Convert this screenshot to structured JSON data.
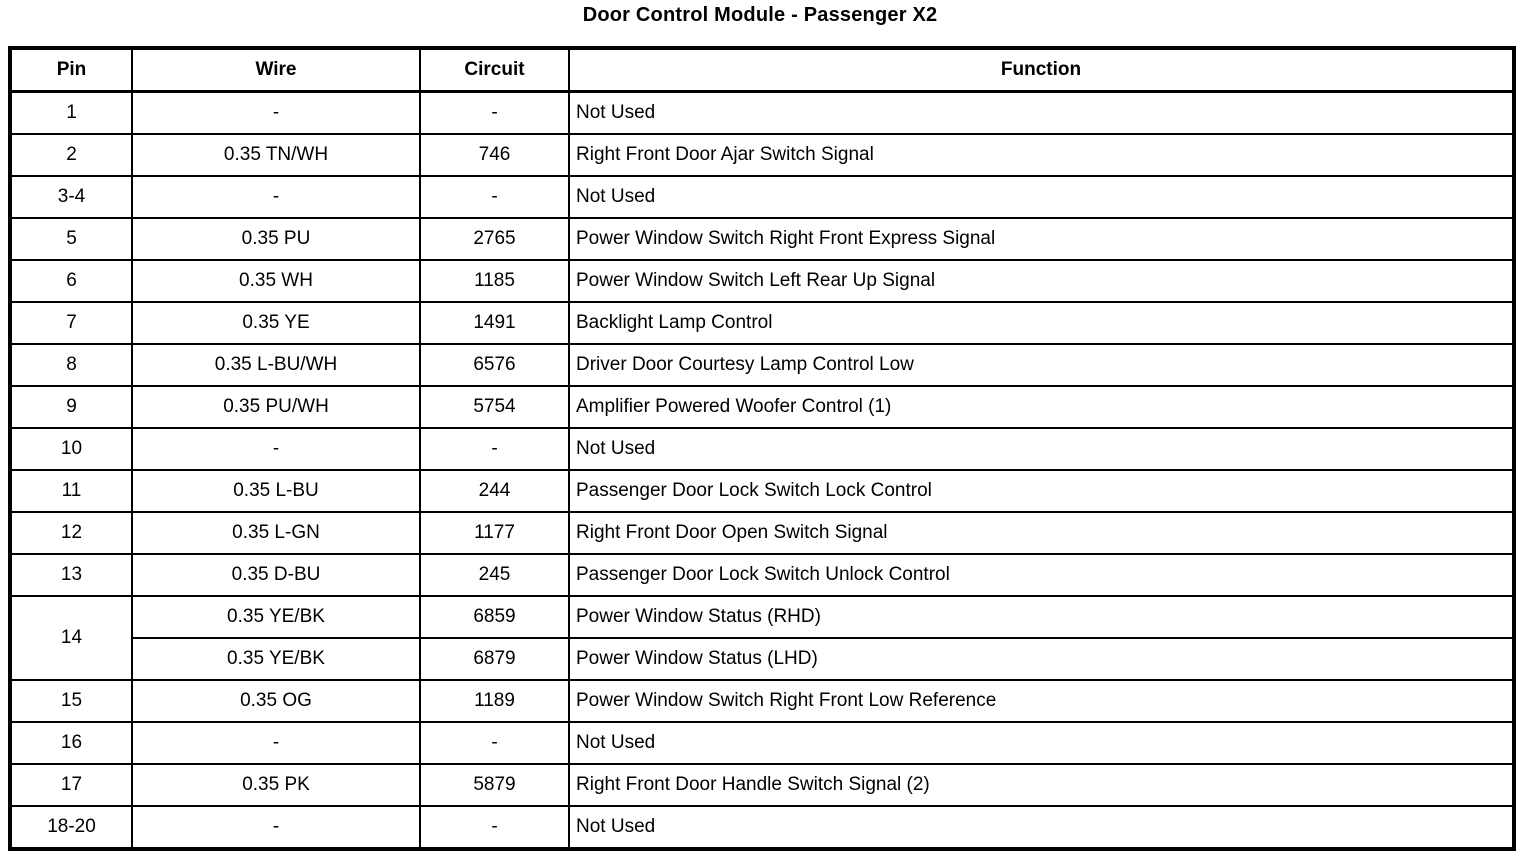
{
  "title": "Door Control Module - Passenger X2",
  "colors": {
    "text": "#000000",
    "background": "#ffffff",
    "border": "#000000"
  },
  "table": {
    "headers": [
      "Pin",
      "Wire",
      "Circuit",
      "Function"
    ],
    "rows": [
      {
        "pin": "1",
        "wire": "-",
        "circuit": "-",
        "function": "Not Used"
      },
      {
        "pin": "2",
        "wire": "0.35 TN/WH",
        "circuit": "746",
        "function": "Right Front Door Ajar Switch Signal"
      },
      {
        "pin": "3-4",
        "wire": "-",
        "circuit": "-",
        "function": "Not Used"
      },
      {
        "pin": "5",
        "wire": "0.35 PU",
        "circuit": "2765",
        "function": "Power Window Switch Right Front Express Signal"
      },
      {
        "pin": "6",
        "wire": "0.35 WH",
        "circuit": "1185",
        "function": "Power Window Switch Left Rear Up Signal"
      },
      {
        "pin": "7",
        "wire": "0.35 YE",
        "circuit": "1491",
        "function": "Backlight Lamp Control"
      },
      {
        "pin": "8",
        "wire": "0.35 L-BU/WH",
        "circuit": "6576",
        "function": "Driver Door Courtesy Lamp Control Low"
      },
      {
        "pin": "9",
        "wire": "0.35 PU/WH",
        "circuit": "5754",
        "function": "Amplifier Powered Woofer Control (1)"
      },
      {
        "pin": "10",
        "wire": "-",
        "circuit": "-",
        "function": "Not Used"
      },
      {
        "pin": "11",
        "wire": "0.35 L-BU",
        "circuit": "244",
        "function": "Passenger Door Lock Switch Lock Control"
      },
      {
        "pin": "12",
        "wire": "0.35 L-GN",
        "circuit": "1177",
        "function": "Right Front Door Open Switch Signal"
      },
      {
        "pin": "13",
        "wire": "0.35 D-BU",
        "circuit": "245",
        "function": "Passenger Door Lock Switch Unlock Control"
      },
      {
        "pin": "14",
        "rowspan": 2,
        "wire": "0.35 YE/BK",
        "circuit": "6859",
        "function": "Power Window Status (RHD)"
      },
      {
        "pin": null,
        "wire": "0.35 YE/BK",
        "circuit": "6879",
        "function": "Power Window Status (LHD)"
      },
      {
        "pin": "15",
        "wire": "0.35 OG",
        "circuit": "1189",
        "function": "Power Window Switch Right Front Low Reference"
      },
      {
        "pin": "16",
        "wire": "-",
        "circuit": "-",
        "function": "Not Used"
      },
      {
        "pin": "17",
        "wire": "0.35 PK",
        "circuit": "5879",
        "function": "Right Front Door Handle Switch Signal (2)"
      },
      {
        "pin": "18-20",
        "wire": "-",
        "circuit": "-",
        "function": "Not Used"
      }
    ]
  }
}
